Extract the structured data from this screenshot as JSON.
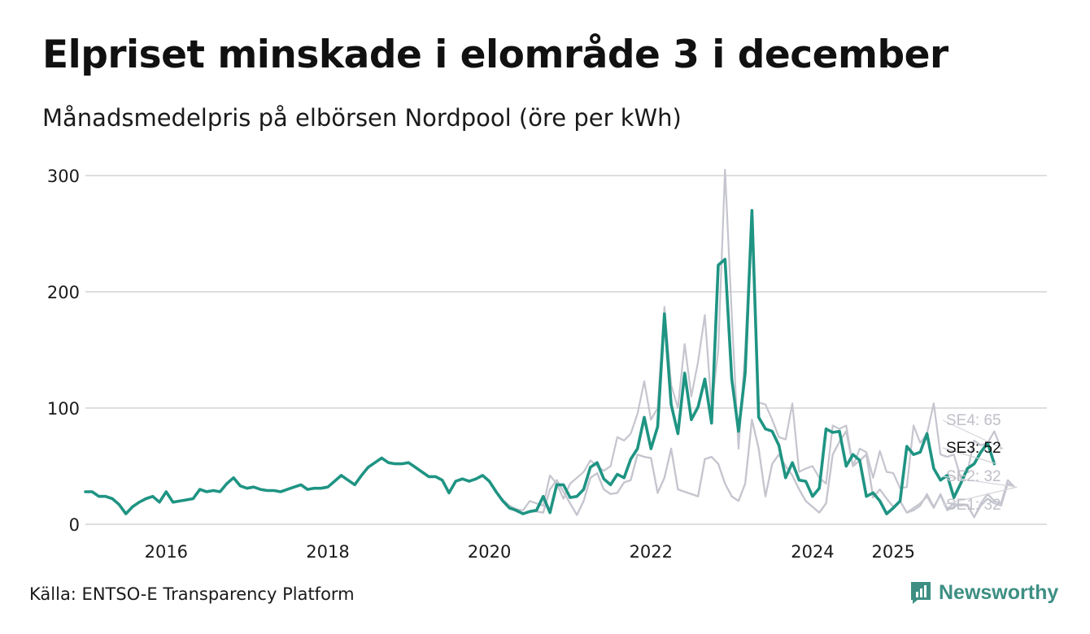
{
  "chart_data": {
    "type": "line",
    "title": "Elpriset minskade i elområde 3 i december",
    "subtitle": "Månadsmedelpris på elbörsen Nordpool (öre per kWh)",
    "xlabel": "",
    "ylabel": "",
    "ylim": [
      0,
      300
    ],
    "yticks": [
      0,
      100,
      200,
      300
    ],
    "xlim": [
      2015.0,
      2026.9
    ],
    "xticks": [
      {
        "value": 2016.0,
        "label": "2016"
      },
      {
        "value": 2018.0,
        "label": "2018"
      },
      {
        "value": 2020.0,
        "label": "2020"
      },
      {
        "value": 2022.0,
        "label": "2022"
      },
      {
        "value": 2024.0,
        "label": "2024"
      },
      {
        "value": 2025.0,
        "label": "2025"
      }
    ],
    "x_start": 2015.0,
    "x_step": 0.08333,
    "grid": "horizontal",
    "series": [
      {
        "name": "SE1",
        "end_label": "SE1: 32",
        "color": "#c5c5cf",
        "highlight": false,
        "values": [
          28,
          28,
          24,
          24,
          22,
          17,
          9,
          15,
          19,
          22,
          24,
          19,
          28,
          19,
          20,
          21,
          22,
          30,
          28,
          29,
          28,
          35,
          40,
          33,
          31,
          32,
          30,
          29,
          29,
          28,
          30,
          32,
          34,
          30,
          31,
          31,
          32,
          37,
          42,
          38,
          34,
          42,
          49,
          53,
          57,
          53,
          52,
          52,
          53,
          49,
          45,
          41,
          41,
          38,
          27,
          37,
          39,
          37,
          39,
          42,
          37,
          28,
          21,
          15,
          11,
          9,
          11,
          11,
          10,
          30,
          38,
          28,
          18,
          8,
          20,
          40,
          44,
          30,
          26,
          27,
          36,
          38,
          60,
          58,
          57,
          27,
          40,
          65,
          30,
          28,
          26,
          24,
          56,
          58,
          52,
          35,
          24,
          20,
          35,
          90,
          65,
          24,
          52,
          60,
          50,
          42,
          30,
          20,
          15,
          10,
          18,
          60,
          71,
          80,
          50,
          55,
          60,
          23,
          30,
          22,
          15,
          20,
          10,
          12,
          16,
          26,
          15,
          25,
          12,
          15,
          17,
          16,
          6,
          16,
          22,
          18,
          16,
          35,
          32
        ]
      },
      {
        "name": "SE2",
        "end_label": "SE2: 32",
        "color": "#c5c5cf",
        "highlight": false,
        "values": [
          28,
          28,
          24,
          24,
          22,
          17,
          9,
          15,
          19,
          22,
          24,
          19,
          28,
          19,
          20,
          21,
          22,
          30,
          28,
          29,
          28,
          35,
          40,
          33,
          31,
          32,
          30,
          29,
          29,
          28,
          30,
          32,
          34,
          30,
          31,
          31,
          32,
          37,
          42,
          38,
          34,
          42,
          49,
          53,
          57,
          53,
          52,
          52,
          53,
          49,
          45,
          41,
          41,
          38,
          27,
          37,
          39,
          37,
          39,
          42,
          37,
          28,
          21,
          15,
          11,
          9,
          11,
          11,
          10,
          30,
          38,
          28,
          18,
          8,
          20,
          40,
          44,
          30,
          26,
          27,
          36,
          38,
          60,
          58,
          57,
          27,
          40,
          65,
          30,
          28,
          26,
          24,
          56,
          58,
          52,
          35,
          24,
          20,
          35,
          90,
          65,
          24,
          52,
          60,
          50,
          42,
          30,
          20,
          15,
          10,
          18,
          60,
          71,
          80,
          50,
          55,
          60,
          23,
          30,
          22,
          15,
          20,
          10,
          14,
          18,
          24,
          14,
          26,
          13,
          18,
          16,
          17,
          6,
          18,
          26,
          20,
          18,
          38,
          32
        ]
      },
      {
        "name": "SE4",
        "end_label": "SE4: 65",
        "color": "#c5c5cf",
        "highlight": false,
        "values": [
          28,
          28,
          24,
          24,
          22,
          17,
          9,
          15,
          19,
          22,
          24,
          19,
          28,
          19,
          20,
          21,
          22,
          30,
          28,
          29,
          28,
          35,
          40,
          33,
          31,
          32,
          30,
          29,
          29,
          28,
          30,
          32,
          34,
          30,
          31,
          31,
          32,
          37,
          42,
          38,
          34,
          42,
          49,
          53,
          57,
          53,
          52,
          52,
          53,
          49,
          45,
          41,
          41,
          38,
          27,
          37,
          39,
          37,
          39,
          42,
          37,
          28,
          21,
          16,
          13,
          12,
          20,
          18,
          16,
          42,
          35,
          22,
          35,
          40,
          45,
          55,
          50,
          46,
          50,
          75,
          72,
          78,
          95,
          123,
          90,
          100,
          187,
          120,
          100,
          155,
          110,
          140,
          180,
          100,
          150,
          305,
          180,
          65,
          150,
          270,
          105,
          103,
          90,
          75,
          73,
          104,
          45,
          48,
          50,
          40,
          35,
          85,
          82,
          85,
          50,
          65,
          62,
          40,
          63,
          45,
          44,
          31,
          32,
          85,
          70,
          78,
          104,
          60,
          58,
          60,
          40,
          45,
          72,
          68,
          70,
          80,
          65
        ]
      },
      {
        "name": "SE3",
        "end_label": "SE3: 52",
        "color": "#1f9483",
        "highlight": true,
        "values": [
          28,
          28,
          24,
          24,
          22,
          17,
          9,
          15,
          19,
          22,
          24,
          19,
          28,
          19,
          20,
          21,
          22,
          30,
          28,
          29,
          28,
          35,
          40,
          33,
          31,
          32,
          30,
          29,
          29,
          28,
          30,
          32,
          34,
          30,
          31,
          31,
          32,
          37,
          42,
          38,
          34,
          42,
          49,
          53,
          57,
          53,
          52,
          52,
          53,
          49,
          45,
          41,
          41,
          38,
          27,
          37,
          39,
          37,
          39,
          42,
          37,
          28,
          20,
          14,
          12,
          9,
          11,
          12,
          24,
          10,
          34,
          34,
          23,
          24,
          30,
          49,
          53,
          39,
          34,
          43,
          40,
          56,
          65,
          92,
          65,
          84,
          181,
          103,
          78,
          130,
          90,
          101,
          125,
          87,
          223,
          228,
          125,
          80,
          130,
          270,
          92,
          82,
          80,
          68,
          40,
          53,
          38,
          37,
          24,
          31,
          82,
          79,
          80,
          50,
          60,
          55,
          24,
          27,
          20,
          9,
          14,
          20,
          67,
          60,
          62,
          78,
          48,
          38,
          42,
          23,
          35,
          48,
          52,
          62,
          70,
          52
        ]
      }
    ]
  },
  "footer": {
    "source": "Källa: ENTSO-E Transparency Platform",
    "brand": "Newsworthy"
  },
  "colors": {
    "highlight": "#1f9483",
    "other": "#c5c5cf",
    "grid": "#dedede",
    "brand": "#3d8f83"
  }
}
